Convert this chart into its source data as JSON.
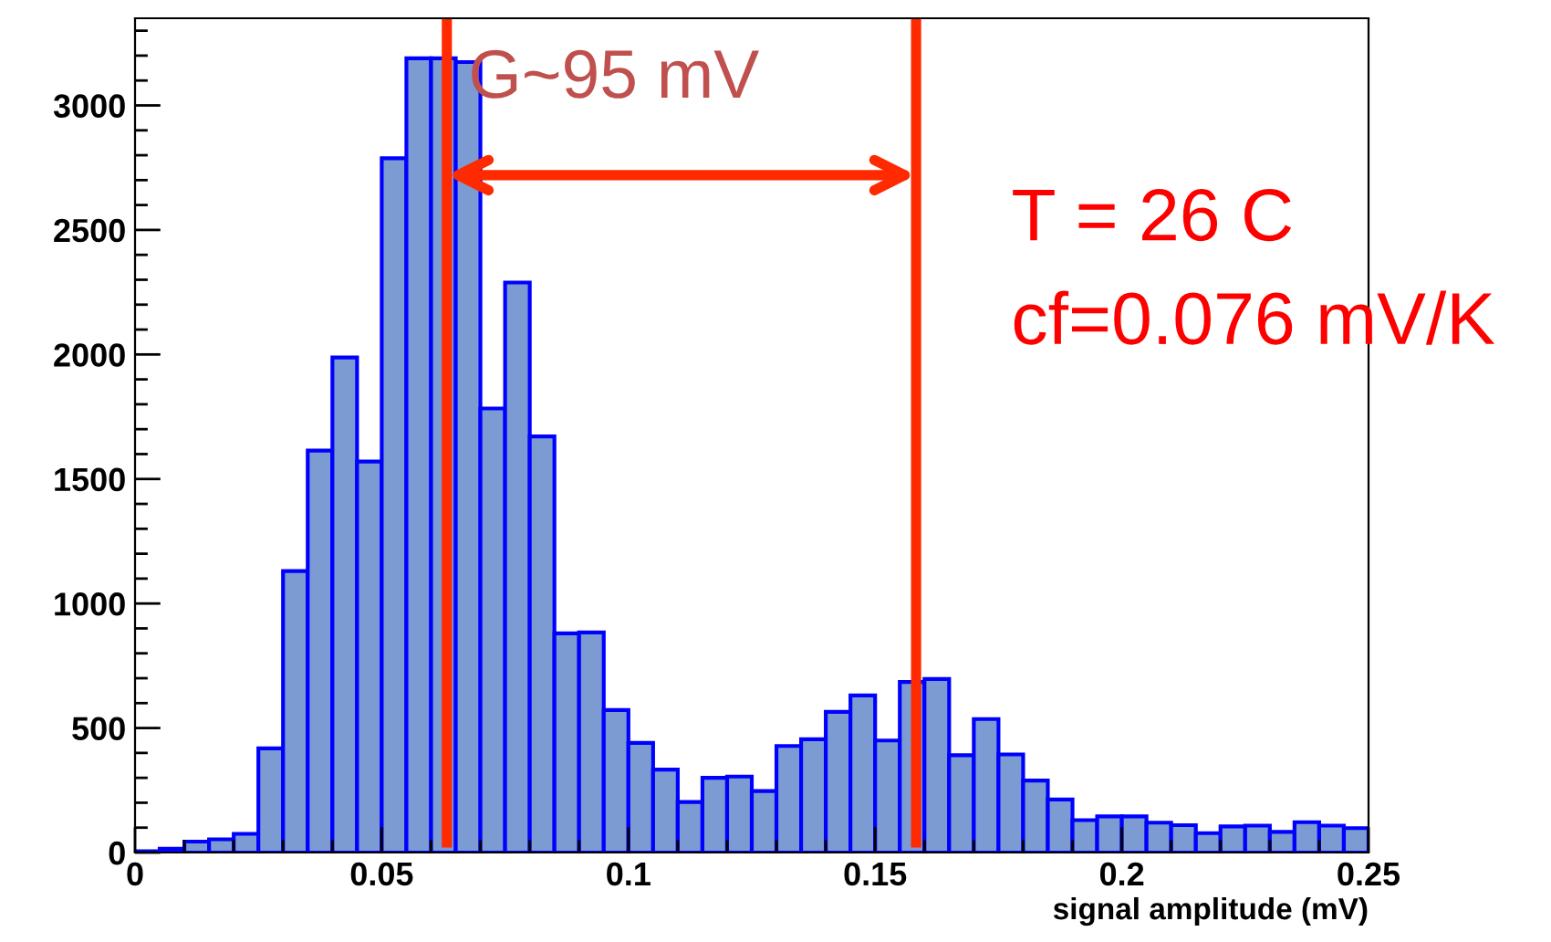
{
  "chart_data": {
    "type": "histogram",
    "xlabel": "signal amplitude (mV)",
    "bins": [
      0,
      0.005,
      0.01,
      0.015,
      0.02,
      0.025,
      0.03,
      0.035,
      0.04,
      0.045,
      0.05,
      0.055,
      0.06,
      0.065,
      0.07,
      0.075,
      0.08,
      0.085,
      0.09,
      0.095,
      0.1,
      0.105,
      0.11,
      0.115,
      0.12,
      0.125,
      0.13,
      0.135,
      0.14,
      0.145,
      0.15,
      0.155,
      0.16,
      0.165,
      0.17,
      0.175,
      0.18,
      0.185,
      0.19,
      0.195,
      0.2,
      0.205,
      0.21,
      0.215,
      0.22,
      0.225,
      0.23,
      0.235,
      0.24,
      0.245,
      0.25
    ],
    "values": [
      5,
      15,
      44,
      53,
      75,
      418,
      1130,
      1614,
      1988,
      1570,
      2788,
      3189,
      3189,
      3174,
      1783,
      2289,
      1671,
      880,
      884,
      572,
      440,
      333,
      203,
      300,
      305,
      247,
      428,
      455,
      565,
      631,
      450,
      685,
      697,
      391,
      536,
      394,
      289,
      213,
      130,
      145,
      145,
      120,
      110,
      78,
      105,
      108,
      83,
      122,
      108,
      98
    ],
    "color": "#7b9bd2",
    "xlim": [
      0,
      0.25
    ],
    "xticks": [
      0,
      0.05,
      0.1,
      0.15,
      0.2,
      0.25
    ],
    "ylim": [
      0,
      3350
    ],
    "yticks": [
      0,
      500,
      1000,
      1500,
      2000,
      2500,
      3000
    ],
    "grid": false,
    "legend": false,
    "ref_lines": [
      {
        "axis": "x",
        "value": 0.0632,
        "color": "#ff2a00"
      },
      {
        "axis": "x",
        "value": 0.1583,
        "color": "#ff2a00"
      }
    ],
    "annotations": [
      {
        "text": "G~95 mV",
        "x": 0.0632,
        "y": 2720
      },
      "T = 26 C",
      "cf=0.076 mV/K"
    ]
  }
}
